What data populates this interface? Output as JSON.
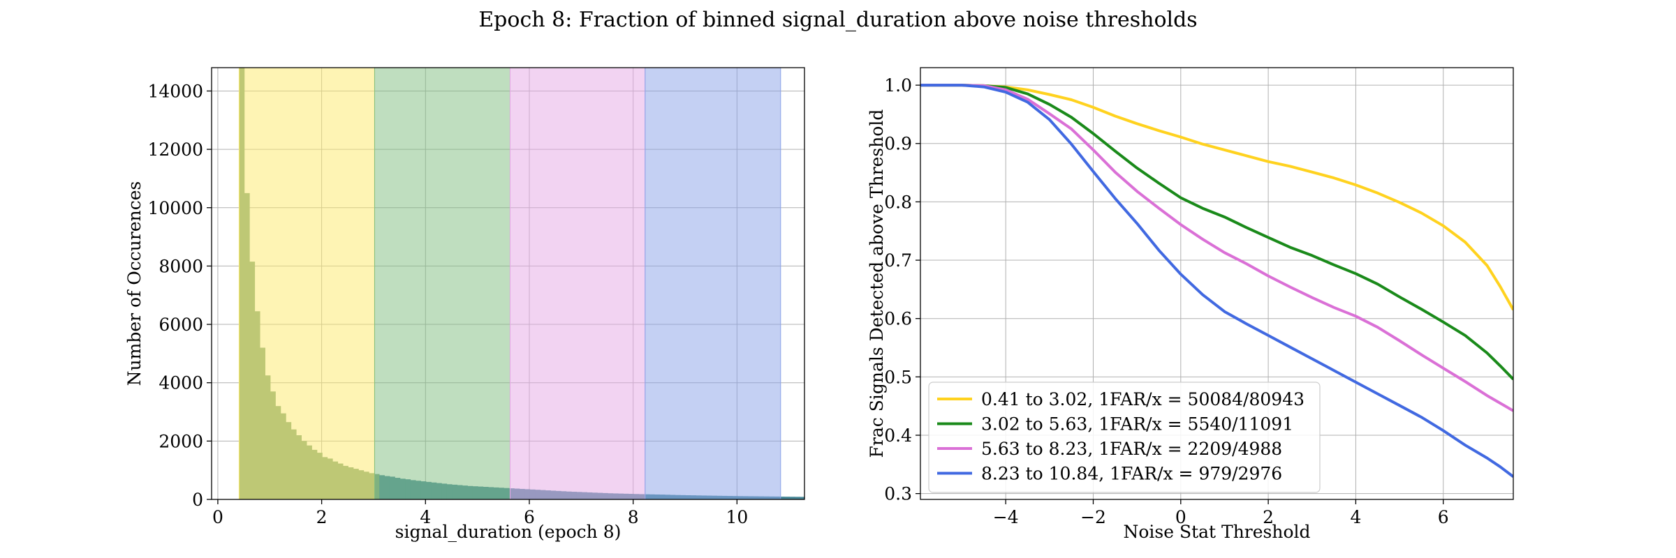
{
  "title": "Epoch 8: Fraction of binned signal_duration above noise thresholds",
  "chart_data": [
    {
      "type": "bar",
      "subtype": "histogram",
      "xlabel": "signal_duration (epoch 8)",
      "ylabel": "Number of Occurences",
      "xlim": [
        -0.12,
        11.3
      ],
      "ylim": [
        0,
        14800
      ],
      "xticks": [
        0,
        2,
        4,
        6,
        8,
        10
      ],
      "yticks": [
        0,
        2000,
        4000,
        6000,
        8000,
        10000,
        12000,
        14000
      ],
      "grid": true,
      "bin_start": 0.41,
      "bin_width": 0.1,
      "bar_color": "#7ea681",
      "bar_color_overlay": "#4a8a9a",
      "values": [
        14800,
        10500,
        8150,
        6450,
        5200,
        4250,
        3700,
        3200,
        2950,
        2650,
        2400,
        2200,
        2000,
        1850,
        1700,
        1600,
        1450,
        1400,
        1300,
        1230,
        1150,
        1100,
        1050,
        1000,
        950,
        900,
        870,
        830,
        800,
        780,
        740,
        710,
        690,
        660,
        640,
        620,
        600,
        580,
        560,
        540,
        520,
        505,
        490,
        475,
        460,
        450,
        440,
        430,
        420,
        410,
        400,
        390,
        380,
        370,
        360,
        350,
        340,
        330,
        320,
        310,
        300,
        290,
        280,
        270,
        262,
        255,
        248,
        240,
        232,
        225,
        218,
        210,
        205,
        200,
        195,
        190,
        185,
        180,
        175,
        172,
        168,
        165,
        160,
        155,
        150,
        147,
        143,
        140,
        136,
        133,
        130,
        127,
        124,
        121,
        118,
        115,
        112,
        110,
        108,
        106,
        104,
        102,
        100,
        98,
        96,
        94,
        92,
        90,
        88
      ],
      "bands": [
        {
          "from": 0.41,
          "to": 3.02,
          "color": "#fde96a"
        },
        {
          "from": 3.02,
          "to": 5.63,
          "color": "#80bd80"
        },
        {
          "from": 5.63,
          "to": 8.23,
          "color": "#e6a8e6"
        },
        {
          "from": 8.23,
          "to": 10.84,
          "color": "#8aa2e8"
        }
      ]
    },
    {
      "type": "line",
      "xlabel": "Noise Stat Threshold",
      "ylabel": "Frac Signals Detected above Threshold",
      "xlim": [
        -5.95,
        7.6
      ],
      "ylim": [
        0.29,
        1.03
      ],
      "xticks": [
        -4,
        -2,
        0,
        2,
        4,
        6
      ],
      "yticks": [
        0.3,
        0.4,
        0.5,
        0.6,
        0.7,
        0.8,
        0.9,
        1.0
      ],
      "grid": true,
      "legend_position": "lower-left",
      "x": [
        -5.95,
        -5,
        -4.5,
        -4,
        -3.5,
        -3,
        -2.5,
        -2,
        -1.5,
        -1,
        -0.5,
        0,
        0.5,
        1,
        1.5,
        2,
        2.5,
        3,
        3.5,
        4,
        4.5,
        5,
        5.5,
        6,
        6.5,
        7,
        7.3,
        7.6
      ],
      "series": [
        {
          "name": "0.41 to 3.02, 1FAR/x = 50084/80943",
          "color": "#ffd21f",
          "values": [
            1.0,
            1.0,
            0.999,
            0.997,
            0.992,
            0.984,
            0.975,
            0.962,
            0.947,
            0.934,
            0.922,
            0.911,
            0.899,
            0.889,
            0.879,
            0.869,
            0.861,
            0.851,
            0.841,
            0.829,
            0.815,
            0.799,
            0.781,
            0.759,
            0.731,
            0.691,
            0.655,
            0.615
          ]
        },
        {
          "name": "3.02 to 5.63, 1FAR/x = 5540/11091",
          "color": "#1a8a1a",
          "values": [
            1.0,
            1.0,
            0.999,
            0.996,
            0.985,
            0.967,
            0.945,
            0.917,
            0.887,
            0.858,
            0.832,
            0.807,
            0.789,
            0.774,
            0.756,
            0.739,
            0.722,
            0.708,
            0.692,
            0.677,
            0.659,
            0.637,
            0.616,
            0.594,
            0.571,
            0.541,
            0.519,
            0.496
          ]
        },
        {
          "name": "5.63 to 8.23, 1FAR/x = 2209/4988",
          "color": "#da70d6",
          "values": [
            1.0,
            1.0,
            0.999,
            0.992,
            0.976,
            0.951,
            0.925,
            0.889,
            0.851,
            0.818,
            0.789,
            0.761,
            0.736,
            0.713,
            0.694,
            0.673,
            0.654,
            0.636,
            0.619,
            0.604,
            0.585,
            0.562,
            0.538,
            0.515,
            0.492,
            0.468,
            0.455,
            0.442
          ]
        },
        {
          "name": "8.23 to 10.84, 1FAR/x = 979/2976",
          "color": "#4169e1",
          "values": [
            1.0,
            1.0,
            0.997,
            0.988,
            0.971,
            0.941,
            0.899,
            0.852,
            0.806,
            0.763,
            0.717,
            0.676,
            0.641,
            0.612,
            0.591,
            0.571,
            0.551,
            0.531,
            0.511,
            0.491,
            0.471,
            0.451,
            0.431,
            0.408,
            0.383,
            0.361,
            0.346,
            0.329
          ]
        }
      ]
    }
  ]
}
